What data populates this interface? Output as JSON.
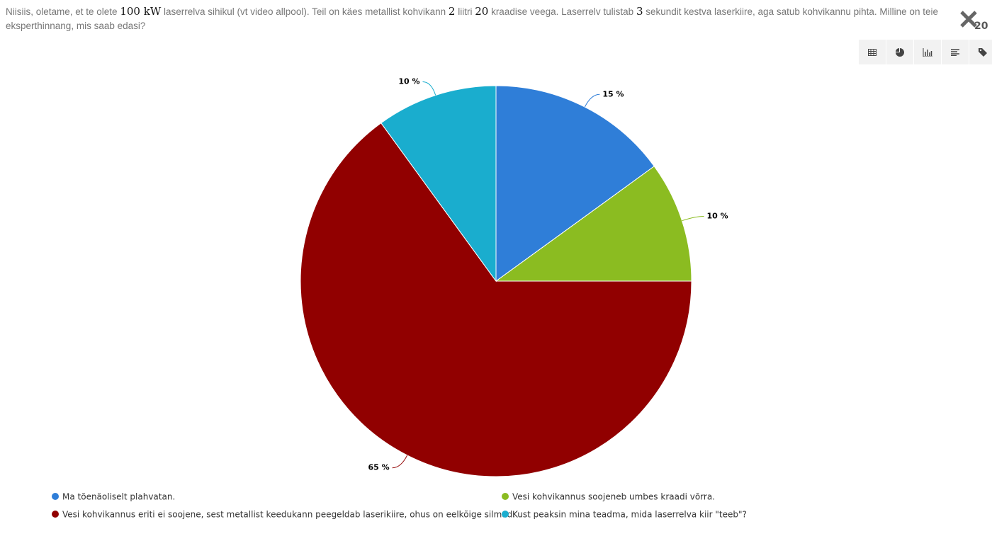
{
  "question": [
    "Niisiis, oletame, et te olete ",
    "100 kW",
    " laserrelva sihikul (vt video allpool). Teil on käes metallist kohvikann ",
    "2",
    " liitri ",
    "20",
    " kraadise veega. Laserrelv tulistab ",
    "3",
    " sekundit kestva laserkiire, aga satub kohvikannu pihta. Milline on teie eksperthinnang, mis saab edasi?"
  ],
  "counter": "20",
  "chart_data": {
    "type": "pie",
    "categories": [
      "Ma tõenäoliselt plahvatan.",
      "Vesi kohvikannus soojeneb umbes kraadi võrra.",
      "Vesi kohvikannus eriti ei soojene, sest metallist keedukann peegeldab laserikiire, ohus on eelkõige silmad.",
      "Kust peaksin mina teadma, mida laserrelva kiir \"teeb\"?"
    ],
    "values": [
      15,
      10,
      65,
      10
    ],
    "value_labels": [
      "15 %",
      "10 %",
      "65 %",
      "10 %"
    ],
    "colors": [
      "#2f7ed8",
      "#8bbc21",
      "#910000",
      "#1aadce"
    ]
  }
}
